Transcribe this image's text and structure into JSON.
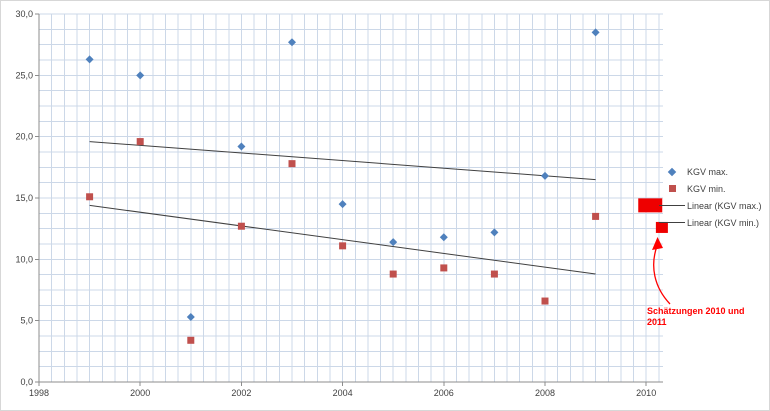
{
  "chart_data": {
    "type": "scatter",
    "x_axis": {
      "min": 1998,
      "max": 2010,
      "tick_step": 2,
      "ticks": [
        "1998",
        "2000",
        "2002",
        "2004",
        "2006",
        "2008",
        "2010"
      ]
    },
    "y_axis": {
      "min": 0,
      "max": 30,
      "tick_step": 5,
      "ticks": [
        "0,0",
        "5,0",
        "10,0",
        "15,0",
        "20,0",
        "25,0",
        "30,0"
      ]
    },
    "grid": {
      "color": "#ccd8e8",
      "minor_x_step": 0.25,
      "minor_y_step": 1.25
    },
    "series": [
      {
        "name": "KGV max.",
        "marker": "diamond",
        "color": "#4f81bd",
        "points": [
          [
            1999,
            26.3
          ],
          [
            2000,
            25.0
          ],
          [
            2001,
            5.3
          ],
          [
            2002,
            19.2
          ],
          [
            2003,
            27.7
          ],
          [
            2004,
            14.5
          ],
          [
            2005,
            11.4
          ],
          [
            2006,
            11.8
          ],
          [
            2007,
            12.2
          ],
          [
            2008,
            16.8
          ],
          [
            2009,
            28.5
          ]
        ]
      },
      {
        "name": "KGV min.",
        "marker": "square",
        "color": "#c0504d",
        "points": [
          [
            1999,
            15.1
          ],
          [
            2000,
            19.6
          ],
          [
            2001,
            3.4
          ],
          [
            2002,
            12.7
          ],
          [
            2003,
            17.8
          ],
          [
            2004,
            11.1
          ],
          [
            2005,
            8.8
          ],
          [
            2006,
            9.3
          ],
          [
            2007,
            8.8
          ],
          [
            2008,
            6.6
          ],
          [
            2009,
            13.5
          ]
        ]
      }
    ],
    "trendlines": [
      {
        "name": "Linear (KGV max.)",
        "color": "#404040",
        "start": [
          1999,
          19.6
        ],
        "end": [
          2009,
          16.5
        ]
      },
      {
        "name": "Linear (KGV min.)",
        "color": "#404040",
        "start": [
          1999,
          14.4
        ],
        "end": [
          2009,
          8.8
        ]
      }
    ],
    "estimate_color": "#ee0000",
    "estimates": [
      {
        "year": 2010.08,
        "value": 14.4,
        "w": 24,
        "h": 14
      },
      {
        "year": 2010.31,
        "value": 12.6,
        "w": 12,
        "h": 11
      }
    ]
  },
  "legend": {
    "items": [
      {
        "label": "KGV max.",
        "icon": "diamond",
        "color": "#4f81bd"
      },
      {
        "label": "KGV min.",
        "icon": "square",
        "color": "#c0504d"
      },
      {
        "label": "Linear (KGV max.)",
        "icon": "line",
        "color": "#404040"
      },
      {
        "label": "Linear (KGV min.)",
        "icon": "line",
        "color": "#404040"
      }
    ]
  },
  "annotation": {
    "line1": "Schätzungen 2010 und",
    "line2": "2011",
    "color": "#ff0000"
  }
}
